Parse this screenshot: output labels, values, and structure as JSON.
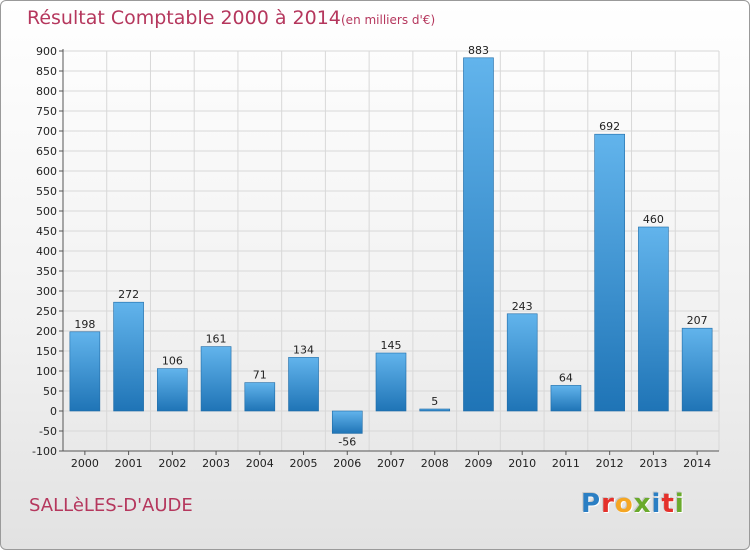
{
  "title": "Résultat Comptable 2000 à 2014",
  "unit": "(en milliers d'€)",
  "commune": "SALLèLES-D'AUDE",
  "logo": {
    "letters": [
      "P",
      "r",
      "o",
      "x",
      "i",
      "t",
      "i"
    ],
    "colors": [
      "#2b7fc4",
      "#e4312b",
      "#f5a623",
      "#6aaa2c",
      "#2b7fc4",
      "#e4312b",
      "#6aaa2c"
    ]
  },
  "colors": {
    "bar_light": "#62b4ec",
    "bar_dark": "#1f74b6",
    "grid": "#d8d8d8"
  },
  "chart_data": {
    "type": "bar",
    "title": "Résultat Comptable 2000 à 2014",
    "subtitle": "(en milliers d'€)",
    "xlabel": "",
    "ylabel": "",
    "categories": [
      "2000",
      "2001",
      "2002",
      "2003",
      "2004",
      "2005",
      "2006",
      "2007",
      "2008",
      "2009",
      "2010",
      "2011",
      "2012",
      "2013",
      "2014"
    ],
    "values": [
      198,
      272,
      106,
      161,
      71,
      134,
      -56,
      145,
      5,
      883,
      243,
      64,
      692,
      460,
      207
    ],
    "ylim": [
      -100,
      900
    ],
    "yticks": [
      -100,
      -50,
      0,
      50,
      100,
      150,
      200,
      250,
      300,
      350,
      400,
      450,
      500,
      550,
      600,
      650,
      700,
      750,
      800,
      850,
      900
    ],
    "grid": true,
    "legend": "none"
  }
}
